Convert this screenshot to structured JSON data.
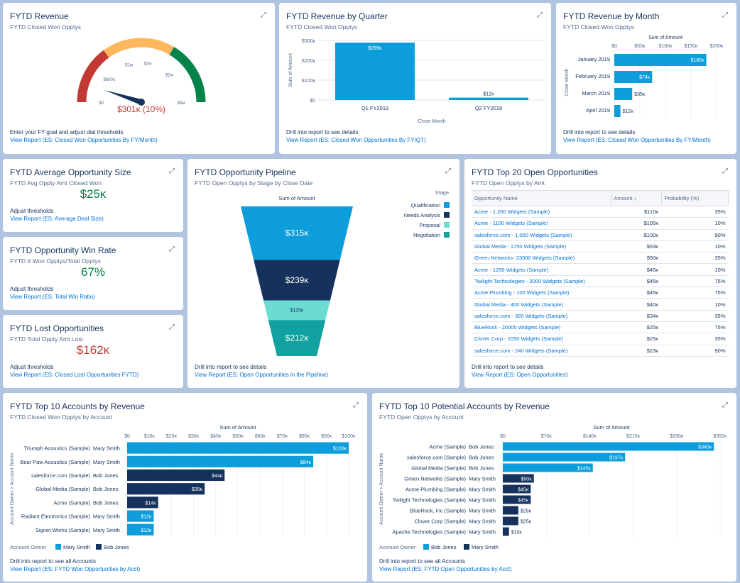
{
  "revenue": {
    "title": "FYTD Revenue",
    "subtitle": "FYTD Closed Won Opptys",
    "expand_icon": "expand-icon",
    "gauge": {
      "value_label": "$301ĸ (10%)",
      "value": 301000,
      "max": 3000000,
      "ticks": [
        "$0",
        "$600ĸ",
        "$1м",
        "$2м",
        "$2м",
        "$3м"
      ],
      "colors": [
        "#c23934",
        "#ffb75d",
        "#04844b"
      ]
    },
    "foot_text": "Enter your FY goal and adjust dial thresholds",
    "link": "View Report (ES: Closed Won Opportunities By FY/Month)"
  },
  "quarter": {
    "title": "FYTD Revenue by Quarter",
    "subtitle": "FYTD Closed Won Opptys",
    "chart_data": {
      "type": "bar",
      "categories": [
        "Q1 FY2019",
        "Q2 FY2019"
      ],
      "values": [
        289,
        12
      ],
      "value_labels": [
        "$289ĸ",
        "$12ĸ"
      ],
      "yticks": [
        "$300ĸ",
        "$200ĸ",
        "$100ĸ",
        "$0"
      ],
      "ylim": [
        0,
        300
      ],
      "ylabel": "Sum of Amount",
      "xlabel": "Close Month",
      "color": "#0d9dda"
    },
    "foot_text": "Drill into report to see details",
    "link": "View Report (ES: Closed Won Opportunities By FY/QT)"
  },
  "month": {
    "title": "FYTD Revenue by Month",
    "subtitle": "FYTD Closed Won Opptys",
    "chart_data": {
      "type": "bar",
      "categories": [
        "January 2019",
        "February 2019",
        "March 2019",
        "April 2019"
      ],
      "values": [
        180,
        74,
        35,
        12
      ],
      "value_labels": [
        "$180ĸ",
        "$74ĸ",
        "$35ĸ",
        "$12ĸ"
      ],
      "xticks": [
        "$0",
        "$50ĸ",
        "$100ĸ",
        "$150ĸ",
        "$200ĸ"
      ],
      "xlim": [
        0,
        200
      ],
      "xlabel": "Sum of Amount",
      "ylabel": "Close Month",
      "color": "#0d9dda"
    },
    "foot_text": "Drill into report to see details",
    "link": "View Report (ES: Closed Won Opportunities By FY/Month)"
  },
  "avgsize": {
    "title": "FYTD Average Opportunity Size",
    "subtitle": "FYTD Avg Oppty Amt Closed Won",
    "value": "$25ĸ",
    "value_color": "#027e46",
    "foot_text": "Adjust thresholds",
    "link": "View Report (ES: Average Deal Size)"
  },
  "winrate": {
    "title": "FYTD Opportunity Win Rate",
    "subtitle": "FYTD # Won Opptys/Total Opptys",
    "value": "67%",
    "value_color": "#027e46",
    "foot_text": "Adjust thresholds",
    "link": "View Report (ES: Total Win Ratio)"
  },
  "lost": {
    "title": "FYTD Lost Opportunities",
    "subtitle": "FYTD Total Oppty Amt Lost",
    "value": "$162ĸ",
    "value_color": "#c23934",
    "foot_text": "Adjust thresholds",
    "link": "View Report (ES: Closed Lost Opportunities FYTD)"
  },
  "pipeline": {
    "title": "FYTD Opportunity Pipeline",
    "subtitle": "FYTD Open Opptys by Stage by Close Date",
    "chart_data": {
      "type": "funnel",
      "label": "Sum of Amount",
      "legend_title": "Stage",
      "stages": [
        "Qualification",
        "Needs Analysis",
        "Proposal",
        "Negotiation"
      ],
      "values": [
        315,
        239,
        115,
        212
      ],
      "value_labels": [
        "$315ĸ",
        "$239ĸ",
        "$115ĸ",
        "$212ĸ"
      ],
      "colors": [
        "#0d9dda",
        "#16325c",
        "#6bdbd4",
        "#11a1a0"
      ]
    },
    "foot_text": "Drill into report to see details",
    "link": "View Report (ES: Open Opportunities in the Pipeline)"
  },
  "top20": {
    "title": "FYTD Top 20 Open Opportunities",
    "subtitle": "FYTD Open Opptys by Amt",
    "columns": [
      "Opportunity Name",
      "Amount ↓",
      "Probability (%)"
    ],
    "rows": [
      [
        "Acme - 1,200 Widgets (Sample)",
        "$110ĸ",
        "35%"
      ],
      [
        "Acme - 1100 Widgets (Sample)",
        "$105ĸ",
        "10%"
      ],
      [
        "salesforce.com - 1,000 Widgets (Sample)",
        "$100ĸ",
        "90%"
      ],
      [
        "Global Media - 1750 Widgets (Sample)",
        "$53ĸ",
        "10%"
      ],
      [
        "Green Networks- 23000 Widgets (Sample)",
        "$50ĸ",
        "35%"
      ],
      [
        "Acme - 1250 Widgets (Sample)",
        "$45ĸ",
        "10%"
      ],
      [
        "Twilight Technologies - 3000 Widgets (Sample)",
        "$45ĸ",
        "75%"
      ],
      [
        "Acme Plumbing - 100 Widgets (Sample)",
        "$45ĸ",
        "75%"
      ],
      [
        "Global Media - 400 Widgets (Sample)",
        "$40ĸ",
        "10%"
      ],
      [
        "salesforce.com - 320 Widgets (Sample)",
        "$34ĸ",
        "35%"
      ],
      [
        "BlueRock - 20000 Widgets (Sample)",
        "$25ĸ",
        "75%"
      ],
      [
        "Clover Corp - 2050 Widgets (Sample)",
        "$25ĸ",
        "35%"
      ],
      [
        "salesforce.com - 240 Widgets (Sample)",
        "$23ĸ",
        "90%"
      ]
    ],
    "foot_text": "Drill into report to see details",
    "link": "View Report (ES: Open Opportunities)"
  },
  "accounts": {
    "title": "FYTD Top 10 Accounts by Revenue",
    "subtitle": "FYTD Closed Won Opptys by Account",
    "chart_data": {
      "type": "bar",
      "xlabel": "Sum of Amount",
      "ylabel": "Account Owner  >  Account Name",
      "xticks": [
        "$0",
        "$10ĸ",
        "$20ĸ",
        "$30ĸ",
        "$40ĸ",
        "$50ĸ",
        "$60ĸ",
        "$70ĸ",
        "$80ĸ",
        "$90ĸ",
        "$100ĸ"
      ],
      "xlim": [
        0,
        100
      ],
      "categories": [
        "Triumph Acoustics (Sample)",
        "Bear Paw Acoustics (Sample)",
        "salesforce.com (Sample)",
        "Global Media (Sample)",
        "Acme (Sample)",
        "Radiant Electronics (Sample)",
        "Signet Works (Sample)"
      ],
      "owners": [
        "Mary Smith",
        "Mary Smith",
        "Bob Jones",
        "Bob Jones",
        "Bob Jones",
        "Mary Smith",
        "Mary Smith"
      ],
      "values": [
        100,
        84,
        44,
        35,
        14,
        12,
        12
      ],
      "value_labels": [
        "$100ĸ",
        "$84ĸ",
        "$44ĸ",
        "$35ĸ",
        "$14ĸ",
        "$12ĸ",
        "$12ĸ"
      ],
      "legend_title": "Account Owner",
      "series": [
        {
          "name": "Mary Smith",
          "color": "#0d9dda"
        },
        {
          "name": "Bob Jones",
          "color": "#16325c"
        }
      ]
    },
    "foot_text": "Drill into report to see all Accounts",
    "link": "View Report (ES: FYTD Won Opportunities by Acct)"
  },
  "potential": {
    "title": "FYTD Top 10 Potential Accounts by Revenue",
    "subtitle": "FYTD Open Opptys by Account",
    "chart_data": {
      "type": "bar",
      "xlabel": "Sum of Amount",
      "ylabel": "Account Owner  >  Account Name",
      "xticks": [
        "$0",
        "$70ĸ",
        "$140ĸ",
        "$210ĸ",
        "$280ĸ",
        "$350ĸ"
      ],
      "xlim": [
        0,
        350
      ],
      "categories": [
        "Acme (Sample)",
        "salesforce.com (Sample)",
        "Global Media (Sample)",
        "Green Networks (Sample)",
        "Acme Plumbing (Sample)",
        "Twilight Technologies (Sample)",
        "BlueRock, Inc (Sample)",
        "Clover Corp (Sample)",
        "Apache Technologies (Sample)"
      ],
      "owners": [
        "Bob Jones",
        "Bob Jones",
        "Bob Jones",
        "Mary Smith",
        "Mary Smith",
        "Mary Smith",
        "Mary Smith",
        "Mary Smith",
        "Mary Smith"
      ],
      "values": [
        340,
        197,
        145,
        50,
        45,
        45,
        25,
        25,
        10
      ],
      "value_labels": [
        "$340ĸ",
        "$197ĸ",
        "$145ĸ",
        "$50ĸ",
        "$45ĸ",
        "$45ĸ",
        "$25ĸ",
        "$25ĸ",
        "$10ĸ"
      ],
      "legend_title": "Account Owner",
      "series": [
        {
          "name": "Bob Jones",
          "color": "#0d9dda"
        },
        {
          "name": "Mary Smith",
          "color": "#16325c"
        }
      ]
    },
    "foot_text": "Drill into report to see all Accounts",
    "link": "View Report (ES: FYTD Open Opportunities by Acct)"
  }
}
